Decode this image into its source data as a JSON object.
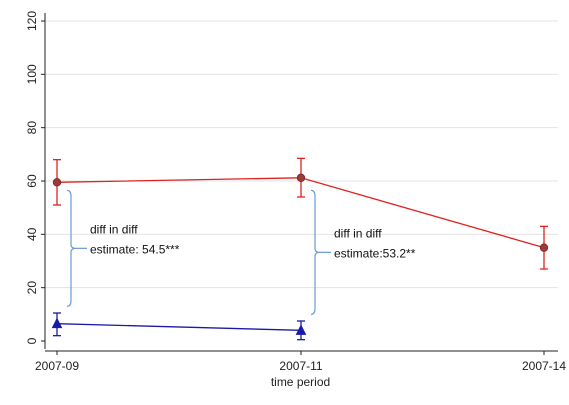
{
  "chart_data": {
    "type": "line",
    "xlabel": "time period",
    "ylabel": "",
    "categories": [
      "2007-09",
      "2007-11",
      "2007-14"
    ],
    "ylim": [
      0,
      120
    ],
    "yticks": [
      0,
      20,
      40,
      60,
      80,
      100,
      120
    ],
    "grid": true,
    "series": [
      {
        "color": "#e0221e",
        "marker": "circle",
        "x": [
          0,
          1,
          2
        ],
        "values": [
          59.5,
          61.2,
          35.0
        ],
        "ci_low": [
          51.0,
          54.0,
          27.0
        ],
        "ci_high": [
          68.0,
          68.5,
          43.0
        ]
      },
      {
        "color": "#1a1aaa",
        "marker": "triangle",
        "x": [
          0,
          1
        ],
        "values": [
          6.5,
          4.0
        ],
        "ci_low": [
          2.0,
          0.5
        ],
        "ci_high": [
          10.5,
          7.5
        ]
      }
    ],
    "annotations": [
      {
        "line1": "diff in diff",
        "line2": "estimate: 54.5***",
        "category": 0,
        "brace_from": 13.0,
        "brace_to": 56.5
      },
      {
        "line1": "diff in diff",
        "line2": "estimate:53.2**",
        "category": 1,
        "brace_from": 10.0,
        "brace_to": 56.5
      }
    ],
    "colors": {
      "brace": "#6a9ad6",
      "grid": "#e3e3e3",
      "axis": "#222222"
    }
  }
}
